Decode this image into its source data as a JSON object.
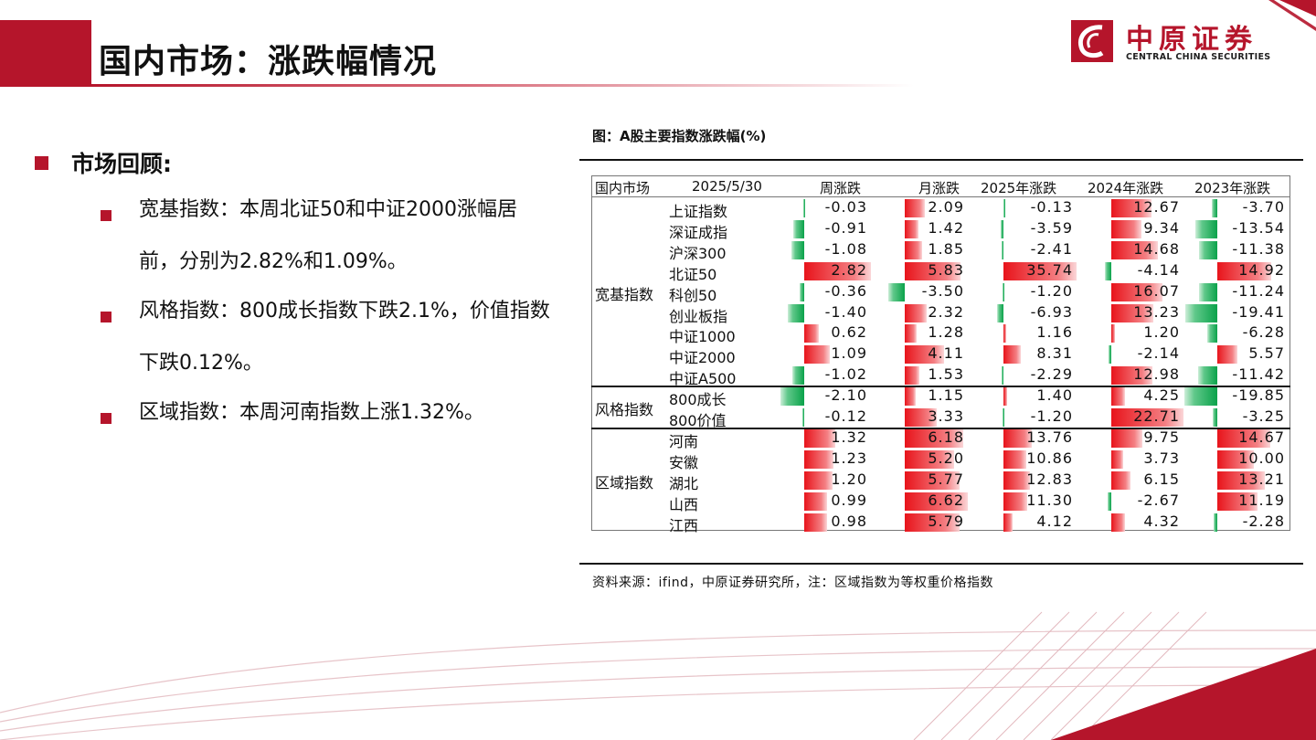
{
  "page": {
    "title": "国内市场：涨跌幅情况",
    "logo": {
      "cn": "中原证券",
      "en": "CENTRAL CHINA SECURITIES"
    },
    "colors": {
      "brand": "#b5152b",
      "up": "#e8141b",
      "down": "#0aa24a"
    }
  },
  "review": {
    "heading": "市场回顾:",
    "items": [
      "宽基指数：本周北证50和中证2000涨幅居前，分别为2.82%和1.09%。",
      "风格指数：800成长指数下跌2.1%，价值指数下跌0.12%。",
      "区域指数：本周河南指数上涨1.32%。"
    ]
  },
  "chart_caption": "图：A股主要指数涨跌幅(%)",
  "source_note": "资料来源：ifind，中原证券研究所，注：区域指数为等权重价格指数",
  "chart_data": {
    "type": "table",
    "columns": [
      "国内市场",
      "2025/5/30",
      "周涨跌",
      "月涨跌",
      "2025年涨跌",
      "2024年涨跌",
      "2023年涨跌"
    ],
    "groups": [
      {
        "name": "宽基指数",
        "rows": [
          {
            "name": "上证指数",
            "values": [
              -0.03,
              2.09,
              -0.13,
              12.67,
              -3.7
            ]
          },
          {
            "name": "深证成指",
            "values": [
              -0.91,
              1.42,
              -3.59,
              9.34,
              -13.54
            ]
          },
          {
            "name": "沪深300",
            "values": [
              -1.08,
              1.85,
              -2.41,
              14.68,
              -11.38
            ]
          },
          {
            "name": "北证50",
            "values": [
              2.82,
              5.83,
              35.74,
              -4.14,
              14.92
            ]
          },
          {
            "name": "科创50",
            "values": [
              -0.36,
              -3.5,
              -1.2,
              16.07,
              -11.24
            ]
          },
          {
            "name": "创业板指",
            "values": [
              -1.4,
              2.32,
              -6.93,
              13.23,
              -19.41
            ]
          },
          {
            "name": "中证1000",
            "values": [
              0.62,
              1.28,
              1.16,
              1.2,
              -6.28
            ]
          },
          {
            "name": "中证2000",
            "values": [
              1.09,
              4.11,
              8.31,
              -2.14,
              5.57
            ]
          },
          {
            "name": "中证A500",
            "values": [
              -1.02,
              1.53,
              -2.29,
              12.98,
              -11.42
            ]
          }
        ]
      },
      {
        "name": "风格指数",
        "rows": [
          {
            "name": "800成长",
            "values": [
              -2.1,
              1.15,
              1.4,
              4.25,
              -19.85
            ]
          },
          {
            "name": "800价值",
            "values": [
              -0.12,
              3.33,
              -1.2,
              22.71,
              -3.25
            ]
          }
        ]
      },
      {
        "name": "区域指数",
        "rows": [
          {
            "name": "河南",
            "values": [
              1.32,
              6.18,
              13.76,
              9.75,
              14.67
            ]
          },
          {
            "name": "安徽",
            "values": [
              1.23,
              5.2,
              10.86,
              3.73,
              10.0
            ]
          },
          {
            "name": "湖北",
            "values": [
              1.2,
              5.77,
              12.83,
              6.15,
              13.21
            ]
          },
          {
            "name": "山西",
            "values": [
              0.99,
              6.62,
              11.3,
              -2.67,
              11.19
            ]
          },
          {
            "name": "江西",
            "values": [
              0.98,
              5.79,
              4.12,
              4.32,
              -2.28
            ]
          }
        ]
      }
    ]
  }
}
